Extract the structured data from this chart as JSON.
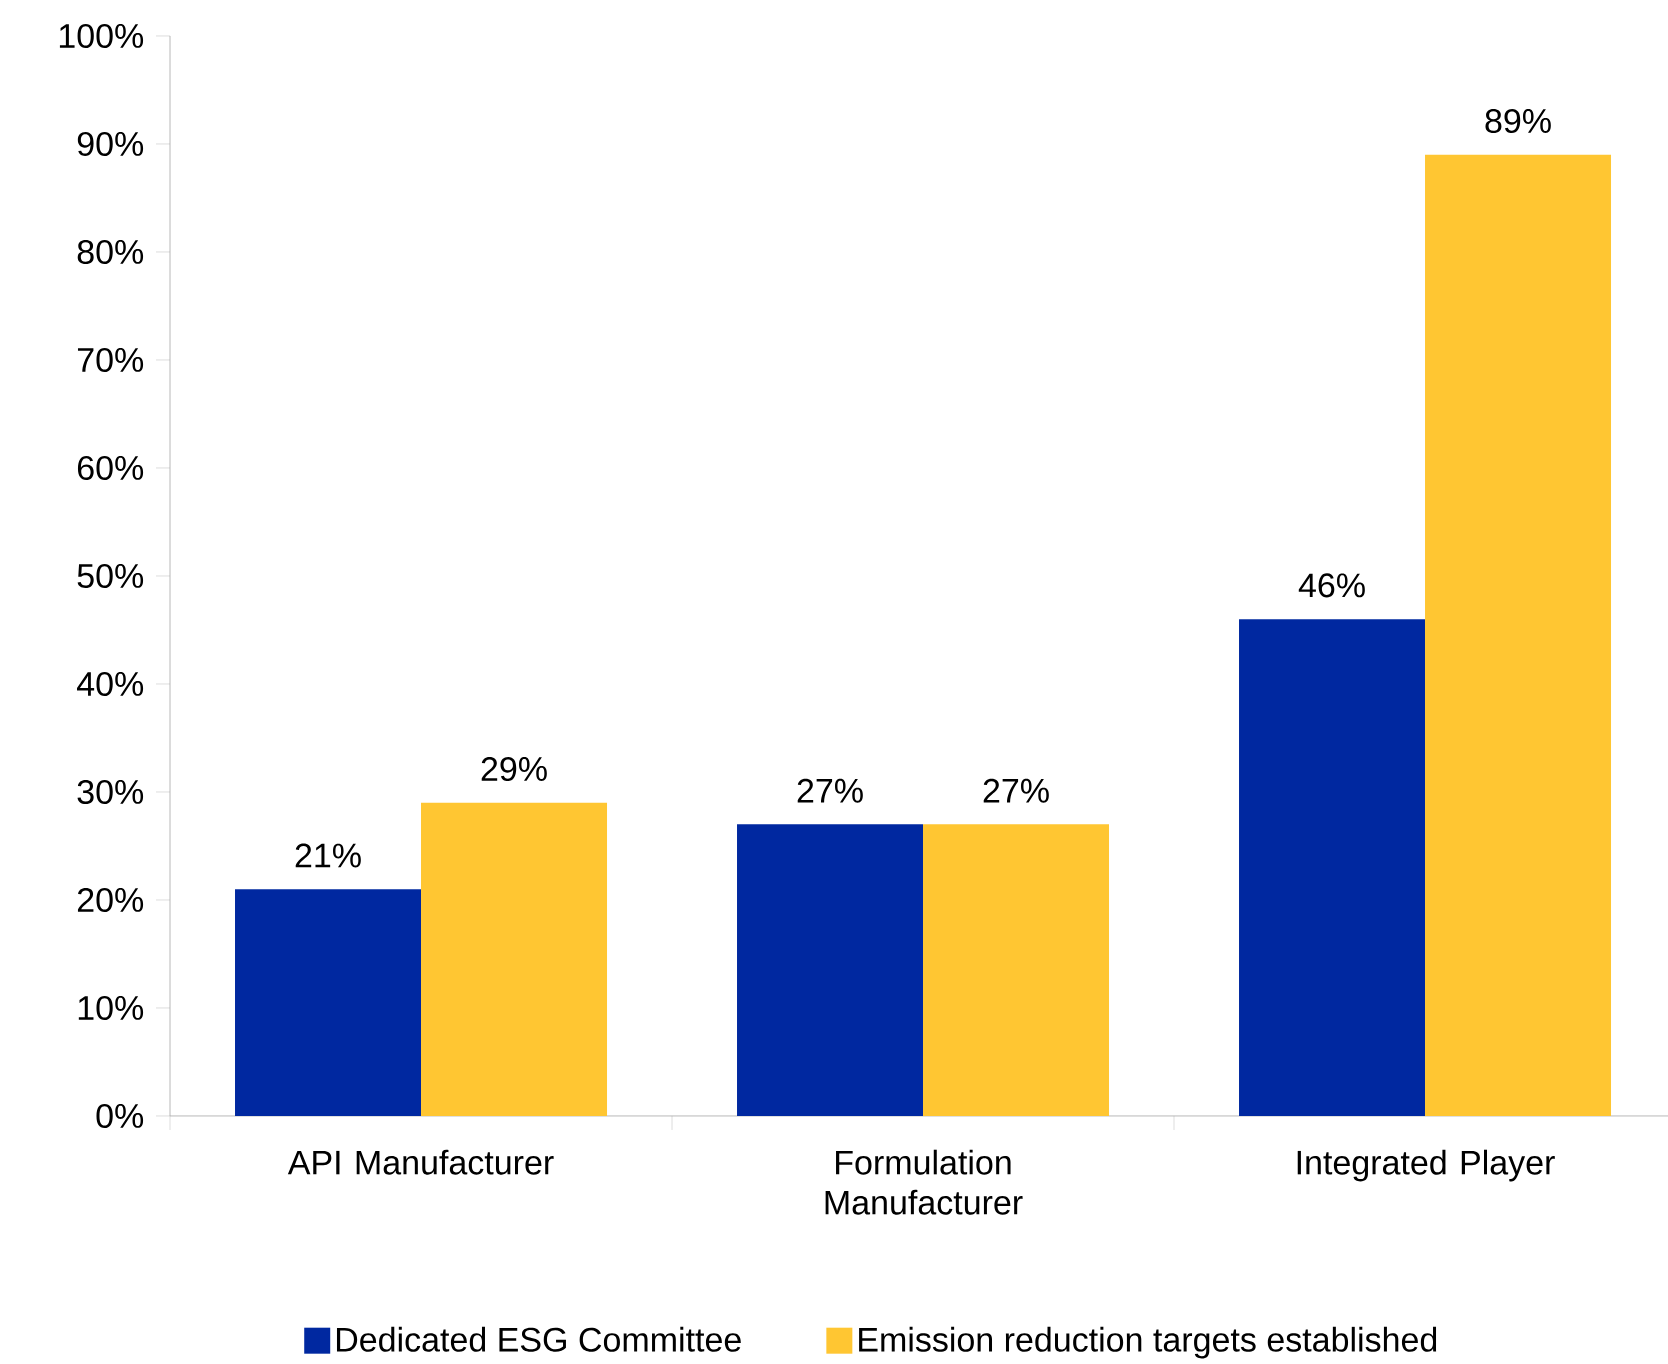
{
  "chart_data": {
    "type": "bar",
    "categories": [
      "API Manufacturer",
      "Formulation Manufacturer",
      "Integrated Player"
    ],
    "series": [
      {
        "name": "Dedicated ESG Committee",
        "color": "#0028a0",
        "values": [
          21,
          27,
          46
        ],
        "value_labels": [
          "21%",
          "27%",
          "46%"
        ]
      },
      {
        "name": "Emission reduction targets established",
        "color": "#ffc632",
        "values": [
          29,
          27,
          89
        ],
        "value_labels": [
          "29%",
          "27%",
          "89%"
        ]
      }
    ],
    "ylim": [
      0,
      100
    ],
    "yticks": [
      {
        "value": 0,
        "label": "0%"
      },
      {
        "value": 10,
        "label": "10%"
      },
      {
        "value": 20,
        "label": "20%"
      },
      {
        "value": 30,
        "label": "30%"
      },
      {
        "value": 40,
        "label": "40%"
      },
      {
        "value": 50,
        "label": "50%"
      },
      {
        "value": 60,
        "label": "60%"
      },
      {
        "value": 70,
        "label": "70%"
      },
      {
        "value": 80,
        "label": "80%"
      },
      {
        "value": 90,
        "label": "90%"
      },
      {
        "value": 100,
        "label": "100%"
      }
    ],
    "legend": "bottom"
  }
}
